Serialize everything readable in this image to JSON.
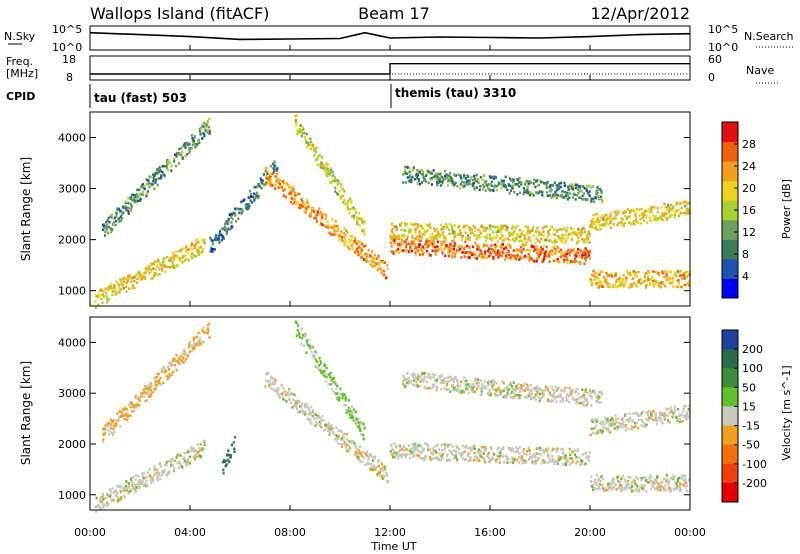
{
  "header": {
    "station": "Wallops Island (fitACF)",
    "beam": "Beam 17",
    "date": "12/Apr/2012"
  },
  "noise_panel": {
    "left_label": "N.Sky",
    "right_label": "N.Search",
    "left_ticks": [
      "10^5",
      "10^0"
    ],
    "right_ticks": [
      "10^5",
      "10^0"
    ]
  },
  "freq_panel": {
    "left_label_1": "Freq.",
    "left_label_2": "[MHz]",
    "left_ticks": [
      "18",
      "8"
    ],
    "right_label": "Nave",
    "right_ticks": [
      "60",
      "0"
    ]
  },
  "cpid_panel": {
    "label": "CPID",
    "modes": [
      {
        "name": "tau (fast) 503"
      },
      {
        "name": "themis (tau) 3310"
      }
    ]
  },
  "time_axis": {
    "title": "Time UT",
    "ticks": [
      "00:00",
      "04:00",
      "08:00",
      "12:00",
      "16:00",
      "20:00",
      "00:00"
    ]
  },
  "range_axis": {
    "title": "Slant Range [km]",
    "ticks": [
      "1000",
      "2000",
      "3000",
      "4000"
    ]
  },
  "power_colorbar": {
    "title": "Power [dB]",
    "ticks": [
      "28",
      "24",
      "20",
      "16",
      "12",
      "8",
      "4"
    ],
    "colors": [
      "#0000f0",
      "#2052b0",
      "#3a7a5a",
      "#70a060",
      "#a8d030",
      "#f0d020",
      "#f0a020",
      "#f06010",
      "#e01010"
    ]
  },
  "velocity_colorbar": {
    "title": "Velocity [m s^-1]",
    "ticks": [
      "200",
      "100",
      "50",
      "15",
      "-15",
      "-50",
      "-100",
      "-200"
    ],
    "colors": [
      "#2040a0",
      "#2a6a4a",
      "#3c8c3c",
      "#60c030",
      "#c8c8c0",
      "#f0a020",
      "#f07010",
      "#f04010",
      "#e00000"
    ]
  },
  "chart_data": [
    {
      "type": "line",
      "title": "N.Sky / N.Search",
      "x": [
        0,
        2,
        4,
        6,
        8,
        10,
        11,
        12,
        14,
        16,
        18,
        20,
        22,
        24
      ],
      "series": [
        {
          "name": "N.Sky",
          "values": [
            3.6,
            3.2,
            2.8,
            2.2,
            2.3,
            2.4,
            3.6,
            2.5,
            2.7,
            2.6,
            2.5,
            2.8,
            3.2,
            3.4
          ]
        }
      ],
      "xlabel": "Time UT",
      "xlim": [
        0,
        24
      ],
      "ylim": [
        0,
        5
      ]
    },
    {
      "type": "line",
      "title": "Freq. [MHz] / Nave",
      "x": [
        0,
        12,
        12,
        24
      ],
      "series": [
        {
          "name": "Freq.",
          "values": [
            10.5,
            10.5,
            14.8,
            14.8
          ]
        },
        {
          "name": "Nave",
          "values": [
            20,
            20,
            20,
            20
          ]
        }
      ],
      "xlim": [
        0,
        24
      ],
      "ylim": [
        8,
        18
      ]
    },
    {
      "type": "heatmap",
      "title": "Power [dB]",
      "xlabel": "Time UT",
      "ylabel": "Slant Range [km]",
      "xlim": [
        0,
        24
      ],
      "ylim": [
        700,
        4500
      ],
      "zlim": [
        0,
        30
      ],
      "bands": [
        {
          "x": [
            0.2,
            4.6
          ],
          "y": [
            850,
            1950
          ],
          "value": 18
        },
        {
          "x": [
            0.5,
            4.8
          ],
          "y": [
            2200,
            4300
          ],
          "value": 10
        },
        {
          "x": [
            4.8,
            7.5
          ],
          "y": [
            1900,
            3500
          ],
          "value": 8
        },
        {
          "x": [
            7.0,
            11.9
          ],
          "y": [
            3300,
            1400
          ],
          "value": 22
        },
        {
          "x": [
            8.2,
            11.0
          ],
          "y": [
            4300,
            2200
          ],
          "value": 16
        },
        {
          "x": [
            12.0,
            20.0
          ],
          "y": [
            1900,
            1700
          ],
          "value": 24
        },
        {
          "x": [
            12.0,
            20.0
          ],
          "y": [
            2200,
            2100
          ],
          "value": 18
        },
        {
          "x": [
            12.5,
            20.5
          ],
          "y": [
            3300,
            2900
          ],
          "value": 10
        },
        {
          "x": [
            20.0,
            24.0
          ],
          "y": [
            1250,
            1250
          ],
          "value": 20
        },
        {
          "x": [
            20.0,
            24.0
          ],
          "y": [
            2350,
            2650
          ],
          "value": 18
        }
      ]
    },
    {
      "type": "heatmap",
      "title": "Velocity [m s^-1]",
      "xlabel": "Time UT",
      "ylabel": "Slant Range [km]",
      "xlim": [
        0,
        24
      ],
      "ylim": [
        700,
        4500
      ],
      "zlim": [
        -200,
        200
      ],
      "bands": [
        {
          "x": [
            0.2,
            4.6
          ],
          "y": [
            850,
            1950
          ],
          "value": 0
        },
        {
          "x": [
            0.5,
            4.8
          ],
          "y": [
            2200,
            4300
          ],
          "value": -30
        },
        {
          "x": [
            5.3,
            5.8
          ],
          "y": [
            1600,
            2100
          ],
          "value": 120
        },
        {
          "x": [
            7.0,
            11.9
          ],
          "y": [
            3300,
            1400
          ],
          "value": 0
        },
        {
          "x": [
            8.2,
            11.0
          ],
          "y": [
            4300,
            2200
          ],
          "value": 30
        },
        {
          "x": [
            12.0,
            20.0
          ],
          "y": [
            1900,
            1750
          ],
          "value": 0
        },
        {
          "x": [
            12.5,
            20.5
          ],
          "y": [
            3300,
            2900
          ],
          "value": 0
        },
        {
          "x": [
            20.0,
            24.0
          ],
          "y": [
            1250,
            1250
          ],
          "value": 0
        },
        {
          "x": [
            20.0,
            24.0
          ],
          "y": [
            2350,
            2650
          ],
          "value": 0
        }
      ]
    }
  ]
}
